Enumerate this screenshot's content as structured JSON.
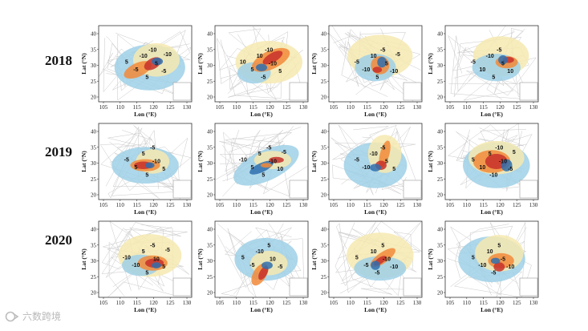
{
  "figure": {
    "rows": [
      {
        "year": "2018",
        "panels": [
          {
            "contours": [
              "-10",
              "5",
              "-5",
              "-10",
              "-5",
              "5",
              "5",
              "-10"
            ]
          },
          {
            "contours": [
              "10",
              "-10",
              "5",
              "-10",
              "5",
              "10",
              "-5"
            ]
          },
          {
            "contours": [
              "10",
              "5",
              "-10",
              "-5",
              "-10",
              "-5",
              "5",
              "-5"
            ]
          },
          {
            "contours": [
              "-10",
              "5",
              "10",
              "-5",
              "10",
              "-5",
              "5"
            ]
          }
        ]
      },
      {
        "year": "2019",
        "panels": [
          {
            "contours": [
              "5",
              "-10",
              "5",
              "-5",
              "5",
              "-5",
              "5"
            ]
          },
          {
            "contours": [
              "5",
              "-10",
              "5",
              "-5",
              "10",
              "-10",
              "5",
              "-5"
            ]
          },
          {
            "contours": [
              "-10",
              "5",
              "-10",
              "-5",
              "5",
              "-5"
            ]
          },
          {
            "contours": [
              "5",
              "-10",
              "10",
              "-10",
              "-5",
              "5",
              "-10",
              "5"
            ]
          }
        ]
      },
      {
        "year": "2020",
        "panels": [
          {
            "contours": [
              "5",
              "10",
              "-10",
              "-5",
              "5",
              "-10",
              "5",
              "-5"
            ]
          },
          {
            "contours": [
              "-10",
              "10",
              "-5",
              "5",
              "-5",
              "5"
            ]
          },
          {
            "contours": [
              "10",
              "-10",
              "-5",
              "5",
              "-10",
              "5",
              "-5"
            ]
          },
          {
            "contours": [
              "10",
              "-5",
              "-10",
              "5",
              "-10",
              "5",
              "-5"
            ]
          }
        ]
      }
    ],
    "axes": {
      "ylabel": "Lat (°N)",
      "xlabel": "Lon (°E)",
      "yticks": [
        "40",
        "35",
        "30",
        "25",
        "20"
      ],
      "xticks": [
        "105",
        "110",
        "115",
        "120",
        "125",
        "130"
      ]
    }
  },
  "watermark": {
    "text": "六数跨境"
  }
}
